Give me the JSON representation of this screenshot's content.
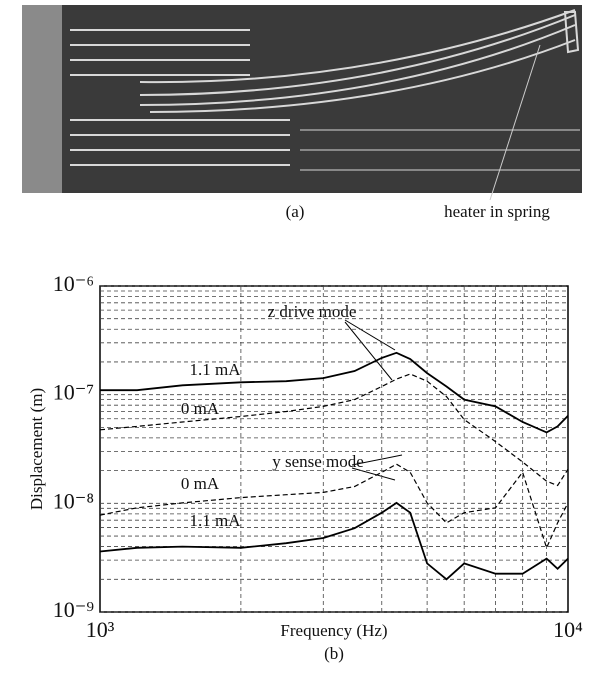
{
  "figure_a": {
    "caption": "(a)",
    "annotation": "heater in spring"
  },
  "chart_data": {
    "type": "line",
    "caption": "(b)",
    "x_label": "Frequency (Hz)",
    "y_label": "Displacement (m)",
    "log_x": true,
    "log_y": true,
    "grid": true,
    "xlim": [
      1000,
      10000
    ],
    "ylim": [
      1e-09,
      1e-06
    ],
    "xticks": [
      {
        "value": 1000,
        "label": "10³"
      },
      {
        "value": 10000,
        "label": "10⁴"
      }
    ],
    "yticks": [
      {
        "value": 1e-09,
        "label": "10⁻⁹"
      },
      {
        "value": 1e-08,
        "label": "10⁻⁸"
      },
      {
        "value": 1e-07,
        "label": "10⁻⁷"
      },
      {
        "value": 1e-06,
        "label": "10⁻⁶"
      }
    ],
    "x": [
      1000,
      1200,
      1500,
      2000,
      2500,
      3000,
      3500,
      4000,
      4300,
      4600,
      5000,
      5500,
      6000,
      7000,
      8000,
      9000,
      9500,
      10000
    ],
    "series": [
      {
        "name": "1.1 mA",
        "color": "#000000",
        "style": "solid",
        "values": [
          1.1e-07,
          1.1e-07,
          1.22e-07,
          1.3e-07,
          1.33e-07,
          1.42e-07,
          1.65e-07,
          2.18e-07,
          2.43e-07,
          2.13e-07,
          1.58e-07,
          1.19e-07,
          9e-08,
          7.8e-08,
          5.6e-08,
          4.5e-08,
          5.1e-08,
          6.4e-08
        ]
      },
      {
        "name": "0 mA",
        "color": "#000000",
        "style": "dashed",
        "values": [
          4.75e-08,
          5.1e-08,
          5.6e-08,
          6.3e-08,
          7e-08,
          7.8e-08,
          9e-08,
          1.19e-07,
          1.39e-07,
          1.55e-07,
          1.33e-07,
          9.6e-08,
          5.9e-08,
          3.7e-08,
          2.4e-08,
          1.6e-08,
          1.46e-08,
          2.06e-08
        ]
      },
      {
        "name": "0 mA",
        "color": "#000000",
        "style": "dashed",
        "values": [
          7.8e-09,
          9.1e-09,
          1.01e-08,
          1.13e-08,
          1.2e-08,
          1.26e-08,
          1.43e-08,
          1.93e-08,
          2.29e-08,
          1.93e-08,
          1.01e-08,
          6.6e-09,
          8.2e-09,
          9.1e-09,
          1.93e-08,
          3.9e-09,
          6.6e-09,
          1.01e-08
        ]
      },
      {
        "name": "1.1 mA",
        "color": "#000000",
        "style": "solid",
        "values": [
          3.6e-09,
          3.9e-09,
          4e-09,
          3.9e-09,
          4.3e-09,
          4.8e-09,
          5.9e-09,
          8.2e-09,
          1.01e-08,
          8.2e-09,
          2.8e-09,
          2e-09,
          2.8e-09,
          2.25e-09,
          2.25e-09,
          3.1e-09,
          2.5e-09,
          3.1e-09
        ]
      }
    ],
    "annotations": [
      "z drive mode",
      "y sense mode"
    ]
  }
}
